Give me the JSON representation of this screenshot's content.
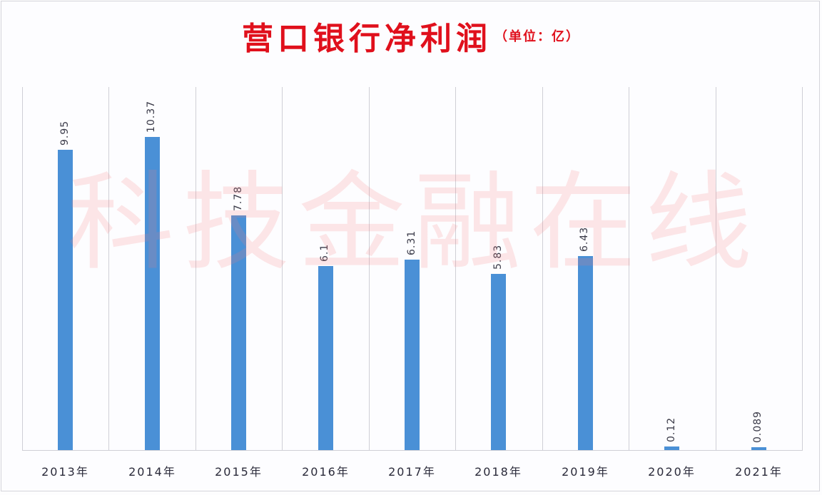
{
  "title": {
    "main": "营口银行净利润",
    "unit": "（单位：亿）"
  },
  "watermark": "科技金融在线",
  "colors": {
    "title": "#e0101c",
    "bar": "#4a90d6",
    "gridline": "#cfcfd6",
    "watermark": "#fa7878"
  },
  "x_labels": [
    "2013年",
    "2014年",
    "2015年",
    "2016年",
    "2017年",
    "2018年",
    "2019年",
    "2020年",
    "2021年"
  ],
  "value_labels": [
    "9.95",
    "10.37",
    "7.78",
    "6.1",
    "6.31",
    "5.83",
    "6.43",
    "0.12",
    "0.089"
  ],
  "chart_data": {
    "type": "bar",
    "title": "营口银行净利润（单位：亿）",
    "xlabel": "",
    "ylabel": "",
    "categories": [
      "2013年",
      "2014年",
      "2015年",
      "2016年",
      "2017年",
      "2018年",
      "2019年",
      "2020年",
      "2021年"
    ],
    "values": [
      9.95,
      10.37,
      7.78,
      6.1,
      6.31,
      5.83,
      6.43,
      0.12,
      0.089
    ],
    "unit": "亿",
    "ylim": [
      0,
      12
    ],
    "grid": "vertical category separators",
    "legend": "none",
    "data_labels": "rotated -90°, above bars"
  }
}
